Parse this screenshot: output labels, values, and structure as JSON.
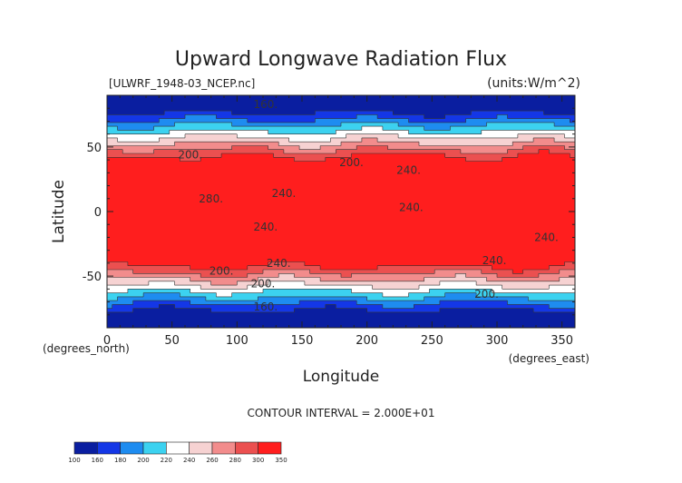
{
  "chart_data": {
    "type": "heatmap",
    "title": "Upward Longwave Radiation Flux",
    "subtitle_left": "[ULWRF_1948-03_NCEP.nc]",
    "subtitle_right": "(units:W/m^2)",
    "xlabel": "Longitude",
    "ylabel": "Latitude",
    "x_unit_label": "(degrees_east)",
    "y_unit_label": "(degrees_north)",
    "xlim": [
      0,
      360
    ],
    "ylim": [
      -90,
      90
    ],
    "x_ticks": [
      0,
      50,
      100,
      150,
      200,
      250,
      300,
      350
    ],
    "y_ticks": [
      -50,
      0,
      50
    ],
    "contour_interval_label": "CONTOUR INTERVAL = 2.000E+01",
    "colorbar": {
      "levels": [
        100,
        160,
        180,
        200,
        220,
        240,
        260,
        280,
        300,
        350
      ],
      "colors": [
        "#0a1ea0",
        "#1437e6",
        "#1e8cf0",
        "#3cd2f0",
        "#ffffff",
        "#f6d2d2",
        "#f28c8c",
        "#eb5050",
        "#ff1e1e"
      ]
    },
    "contour_labels": [
      {
        "x": 122,
        "y": 83,
        "text": "160."
      },
      {
        "x": 64,
        "y": 44,
        "text": "200."
      },
      {
        "x": 188,
        "y": 38,
        "text": "200."
      },
      {
        "x": 232,
        "y": 32,
        "text": "240."
      },
      {
        "x": 136,
        "y": 14,
        "text": "240."
      },
      {
        "x": 80,
        "y": 10,
        "text": "280."
      },
      {
        "x": 234,
        "y": 3,
        "text": "240."
      },
      {
        "x": 122,
        "y": -12,
        "text": "240."
      },
      {
        "x": 338,
        "y": -20,
        "text": "240."
      },
      {
        "x": 132,
        "y": -40,
        "text": "240."
      },
      {
        "x": 298,
        "y": -38,
        "text": "240."
      },
      {
        "x": 88,
        "y": -46,
        "text": "200."
      },
      {
        "x": 120,
        "y": -56,
        "text": "200."
      },
      {
        "x": 292,
        "y": -64,
        "text": "200."
      },
      {
        "x": 122,
        "y": -74,
        "text": "160."
      }
    ]
  }
}
